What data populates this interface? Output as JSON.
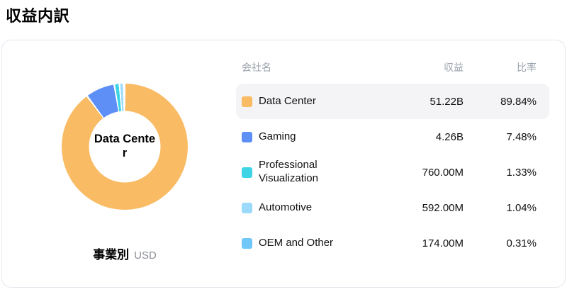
{
  "title": "収益内訳",
  "chart_data": {
    "type": "pie",
    "donut": true,
    "title": "収益内訳",
    "center_label": "Data Center",
    "footer_label": "事業別",
    "footer_unit": "USD",
    "categories": [
      "Data Center",
      "Gaming",
      "Professional Visualization",
      "Automotive",
      "OEM and Other"
    ],
    "values_percent": [
      89.84,
      7.48,
      1.33,
      1.04,
      0.31
    ],
    "revenues": [
      "51.22B",
      "4.26B",
      "760.00M",
      "592.00M",
      "174.00M"
    ],
    "colors": [
      "#F9BB63",
      "#5E8FF7",
      "#3DD4E6",
      "#9BDAFB",
      "#72C7F9"
    ],
    "legend_position": "right-table"
  },
  "table": {
    "headers": {
      "name": "会社名",
      "revenue": "収益",
      "ratio": "比率"
    },
    "rows": [
      {
        "name": "Data Center",
        "revenue": "51.22B",
        "ratio": "89.84%"
      },
      {
        "name": "Gaming",
        "revenue": "4.26B",
        "ratio": "7.48%"
      },
      {
        "name": "Professional Visualization",
        "revenue": "760.00M",
        "ratio": "1.33%"
      },
      {
        "name": "Automotive",
        "revenue": "592.00M",
        "ratio": "1.04%"
      },
      {
        "name": "OEM and Other",
        "revenue": "174.00M",
        "ratio": "0.31%"
      }
    ]
  }
}
